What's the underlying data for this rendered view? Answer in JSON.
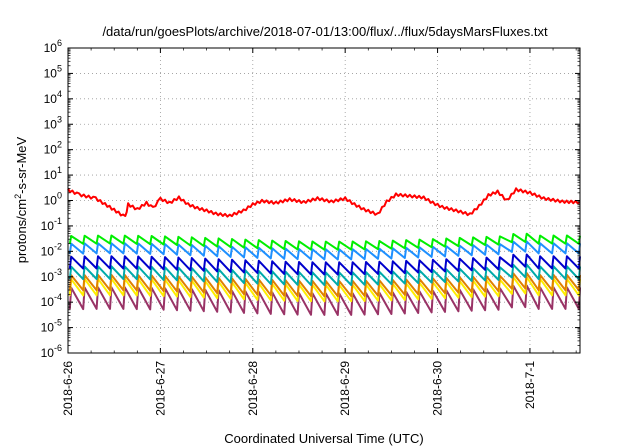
{
  "chart_data": {
    "type": "line",
    "title": "/data/run/goesPlots/archive/2018-07-01/13:00/flux/../flux/5daysMarsFluxes.txt",
    "xlabel": "Coordinated Universal Time (UTC)",
    "ylabel": {
      "base": "protons/cm",
      "sup": "2",
      "rest": "-s-sr-MeV"
    },
    "y_scale": "log",
    "ylim_exp": [
      -6,
      6
    ],
    "y_tick_labels": [
      {
        "exp": -6,
        "base": "10",
        "sup": "-6"
      },
      {
        "exp": -5,
        "base": "10",
        "sup": "-5"
      },
      {
        "exp": -4,
        "base": "10",
        "sup": "-4"
      },
      {
        "exp": -3,
        "base": "10",
        "sup": "-3"
      },
      {
        "exp": -2,
        "base": "10",
        "sup": "-2"
      },
      {
        "exp": -1,
        "base": "10",
        "sup": "-1"
      },
      {
        "exp": 0,
        "base": "10",
        "sup": "0"
      },
      {
        "exp": 1,
        "base": "10",
        "sup": "1"
      },
      {
        "exp": 2,
        "base": "10",
        "sup": "2"
      },
      {
        "exp": 3,
        "base": "10",
        "sup": "3"
      },
      {
        "exp": 4,
        "base": "10",
        "sup": "4"
      },
      {
        "exp": 5,
        "base": "10",
        "sup": "5"
      },
      {
        "exp": 6,
        "base": "10",
        "sup": "6"
      }
    ],
    "xlim": [
      "2018-06-26 00:00",
      "2018-07-01 13:00"
    ],
    "x_ticks": [
      {
        "label": "2018-6-26",
        "day": 0
      },
      {
        "label": "2018-6-27",
        "day": 1
      },
      {
        "label": "2018-6-28",
        "day": 2
      },
      {
        "label": "2018-6-29",
        "day": 3
      },
      {
        "label": "2018-6-30",
        "day": 4
      },
      {
        "label": "2018-7-1",
        "day": 5
      }
    ],
    "grid": true,
    "series": [
      {
        "color": "#ff0000",
        "pattern": "slow",
        "level": 1.0,
        "amp": 0.55
      },
      {
        "color": "#00ee00",
        "pattern": "saw",
        "level": 0.022,
        "amp": 0.32
      },
      {
        "color": "#1e90ff",
        "pattern": "saw",
        "level": 0.01,
        "amp": 0.4
      },
      {
        "color": "#0000cc",
        "pattern": "saw",
        "level": 0.0028,
        "amp": 0.48
      },
      {
        "color": "#00aaaa",
        "pattern": "saw",
        "level": 0.0011,
        "amp": 0.5
      },
      {
        "color": "#e08000",
        "pattern": "saw",
        "level": 0.00045,
        "amp": 0.6
      },
      {
        "color": "#ffee00",
        "pattern": "saw",
        "level": 0.0003,
        "amp": 0.65
      },
      {
        "color": "#993366",
        "pattern": "saw",
        "level": 0.00011,
        "amp": 0.85
      }
    ]
  }
}
